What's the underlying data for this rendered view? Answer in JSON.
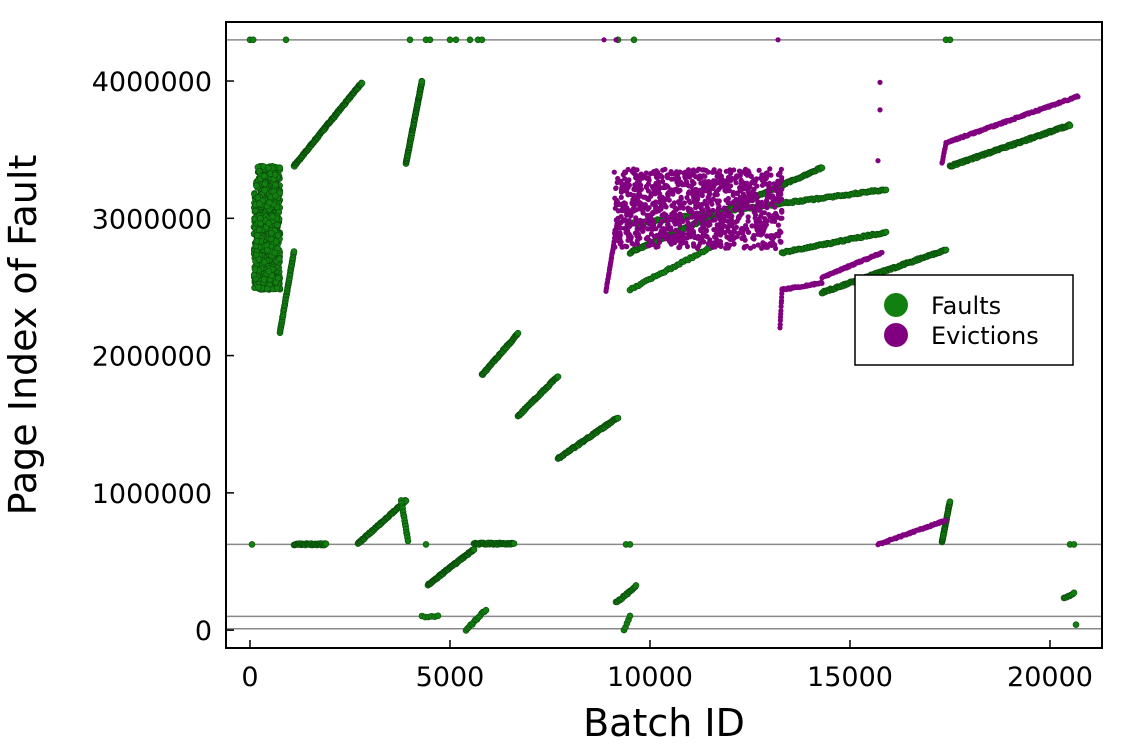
{
  "chart_data": {
    "type": "scatter",
    "xlabel": "Batch ID",
    "ylabel": "Page Index of Fault",
    "xlim": [
      -600,
      21300
    ],
    "ylim": [
      -130000,
      4430000
    ],
    "x_ticks": [
      0,
      5000,
      10000,
      15000,
      20000
    ],
    "y_ticks": [
      0,
      1000000,
      2000000,
      3000000,
      4000000
    ],
    "x_tick_labels": [
      "0",
      "5000",
      "10000",
      "15000",
      "20000"
    ],
    "y_tick_labels": [
      "0",
      "1000000",
      "2000000",
      "3000000",
      "4000000"
    ],
    "grid": false,
    "reference_lines": [
      4300000,
      625000,
      100000,
      10000
    ],
    "legend_position": "right",
    "colors": {
      "faults": "#118011",
      "evictions": "#800080"
    },
    "series": [
      {
        "name": "Faults",
        "color": "#118011",
        "clusters": [
          {
            "kind": "block",
            "x": [
              100,
              750
            ],
            "y": [
              2480000,
              3380000
            ],
            "n": 750
          },
          {
            "kind": "segment",
            "x": [
              750,
              1100
            ],
            "y": [
              2170000,
              2760000
            ],
            "n": 45
          },
          {
            "kind": "segment",
            "x": [
              1100,
              2800
            ],
            "y": [
              3380000,
              3990000
            ],
            "n": 140
          },
          {
            "kind": "segment",
            "x": [
              3900,
              4300
            ],
            "y": [
              3400000,
              4000000
            ],
            "n": 90
          },
          {
            "kind": "segment",
            "x": [
              2700,
              3900
            ],
            "y": [
              630000,
              945000
            ],
            "n": 70
          },
          {
            "kind": "segment",
            "x": [
              3780,
              3950
            ],
            "y": [
              945000,
              650000
            ],
            "n": 15
          },
          {
            "kind": "segment",
            "x": [
              4450,
              5600
            ],
            "y": [
              330000,
              590000
            ],
            "n": 80
          },
          {
            "kind": "segment",
            "x": [
              5600,
              6600
            ],
            "y": [
              630000,
              630000
            ],
            "n": 55
          },
          {
            "kind": "segment",
            "x": [
              1100,
              1900
            ],
            "y": [
              625000,
              625000
            ],
            "n": 40
          },
          {
            "kind": "segment",
            "x": [
              5800,
              6700
            ],
            "y": [
              1860000,
              2160000
            ],
            "n": 55
          },
          {
            "kind": "segment",
            "x": [
              6700,
              7700
            ],
            "y": [
              1560000,
              1850000
            ],
            "n": 55
          },
          {
            "kind": "segment",
            "x": [
              7700,
              9200
            ],
            "y": [
              1250000,
              1550000
            ],
            "n": 80
          },
          {
            "kind": "segment",
            "x": [
              9150,
              9650
            ],
            "y": [
              200000,
              320000
            ],
            "n": 20
          },
          {
            "kind": "segment",
            "x": [
              9500,
              11600
            ],
            "y": [
              2480000,
              2800000
            ],
            "n": 40
          },
          {
            "kind": "segment",
            "x": [
              9500,
              14300
            ],
            "y": [
              2750000,
              3370000
            ],
            "n": 170
          },
          {
            "kind": "segment",
            "x": [
              9500,
              15900
            ],
            "y": [
              2960000,
              3210000
            ],
            "n": 160
          },
          {
            "kind": "segment",
            "x": [
              13300,
              15900
            ],
            "y": [
              2750000,
              2900000
            ],
            "n": 70
          },
          {
            "kind": "segment",
            "x": [
              14300,
              17400
            ],
            "y": [
              2460000,
              2770000
            ],
            "n": 120
          },
          {
            "kind": "segment",
            "x": [
              17500,
              20500
            ],
            "y": [
              3380000,
              3680000
            ],
            "n": 140
          },
          {
            "kind": "segment",
            "x": [
              17300,
              17500
            ],
            "y": [
              640000,
              940000
            ],
            "n": 40
          },
          {
            "kind": "segment",
            "x": [
              20350,
              20600
            ],
            "y": [
              230000,
              270000
            ],
            "n": 8
          },
          {
            "kind": "segment",
            "x": [
              4300,
              4700
            ],
            "y": [
              100000,
              100000
            ],
            "n": 6
          },
          {
            "kind": "segment",
            "x": [
              5400,
              5900
            ],
            "y": [
              0,
              150000
            ],
            "n": 14
          },
          {
            "kind": "segment",
            "x": [
              9350,
              9500
            ],
            "y": [
              0,
              100000
            ],
            "n": 5
          },
          {
            "kind": "points",
            "x": [
              20650
            ],
            "y": [
              40000
            ]
          },
          {
            "kind": "points",
            "x": [
              0,
              80,
              900,
              4000,
              4400,
              4500,
              5000,
              5150,
              5500,
              5700,
              5800,
              9200,
              9600,
              17400,
              17500
            ],
            "y": [
              4300000,
              4300000,
              4300000,
              4300000,
              4300000,
              4300000,
              4300000,
              4300000,
              4300000,
              4300000,
              4300000,
              4300000,
              4300000,
              4300000,
              4300000
            ]
          },
          {
            "kind": "points",
            "x": [
              50,
              4400,
              9400,
              9500,
              20500,
              20600
            ],
            "y": [
              625000,
              625000,
              625000,
              625000,
              625000,
              625000
            ]
          }
        ]
      },
      {
        "name": "Evictions",
        "color": "#800080",
        "clusters": [
          {
            "kind": "block",
            "x": [
              9100,
              13300
            ],
            "y": [
              2780000,
              3360000
            ],
            "n": 1000
          },
          {
            "kind": "segment",
            "x": [
              8900,
              9200
            ],
            "y": [
              2470000,
              3000000
            ],
            "n": 40
          },
          {
            "kind": "segment",
            "x": [
              13300,
              14300
            ],
            "y": [
              2480000,
              2530000
            ],
            "n": 55
          },
          {
            "kind": "segment",
            "x": [
              13250,
              13300
            ],
            "y": [
              2200000,
              2480000
            ],
            "n": 12
          },
          {
            "kind": "segment",
            "x": [
              14300,
              15800
            ],
            "y": [
              2570000,
              2750000
            ],
            "n": 80
          },
          {
            "kind": "segment",
            "x": [
              15700,
              17400
            ],
            "y": [
              625000,
              800000
            ],
            "n": 80
          },
          {
            "kind": "segment",
            "x": [
              17400,
              20700
            ],
            "y": [
              3550000,
              3890000
            ],
            "n": 170
          },
          {
            "kind": "segment",
            "x": [
              17300,
              17400
            ],
            "y": [
              3400000,
              3550000
            ],
            "n": 10
          },
          {
            "kind": "points",
            "x": [
              15750,
              15750,
              15700,
              8850,
              9150,
              13200
            ],
            "y": [
              3990000,
              3790000,
              3420000,
              4300000,
              4300000,
              4300000
            ]
          }
        ]
      }
    ]
  }
}
